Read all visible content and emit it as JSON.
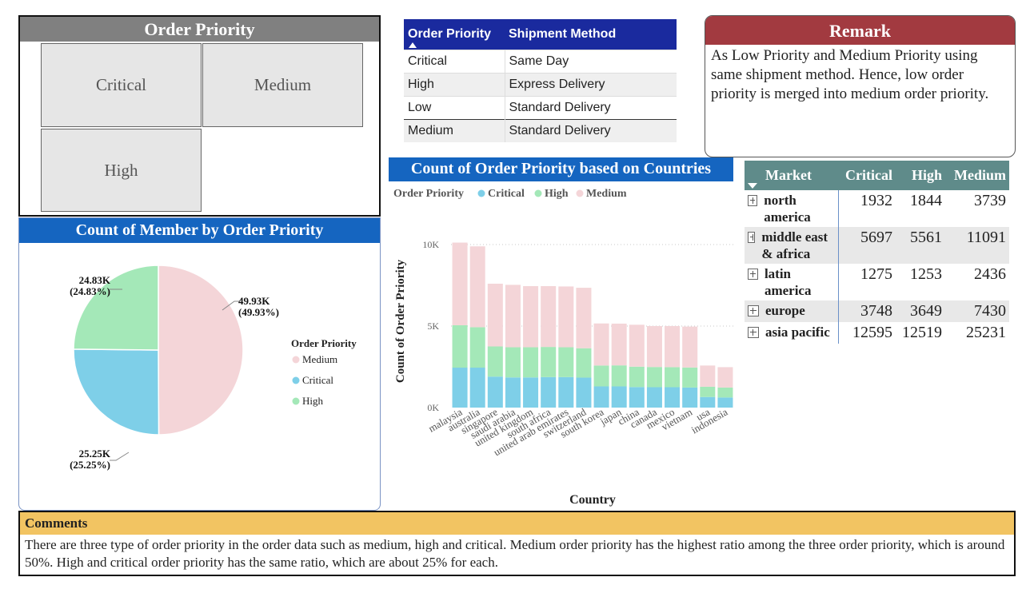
{
  "slicer": {
    "title": "Order Priority",
    "items": [
      "Critical",
      "Medium",
      "High"
    ]
  },
  "shipment_table": {
    "headers": [
      "Order Priority",
      "Shipment Method"
    ],
    "rows": [
      [
        "Critical",
        "Same Day"
      ],
      [
        "High",
        "Express Delivery"
      ],
      [
        "Low",
        "Standard Delivery"
      ],
      [
        "Medium",
        "Standard Delivery"
      ]
    ]
  },
  "remark": {
    "title": "Remark",
    "text": "As Low Priority and Medium Priority using same shipment method. Hence, low order priority is merged into medium order priority."
  },
  "pie": {
    "title": "Count of Member by Order Priority",
    "legend_title": "Order Priority",
    "labels": {
      "medium": [
        "49.93K",
        "(49.93%)"
      ],
      "high": [
        "24.83K",
        "(24.83%)"
      ],
      "critical": [
        "25.25K",
        "(25.25%)"
      ]
    }
  },
  "bar": {
    "title": "Count of Order Priority based on Countries",
    "legend_title": "Order Priority"
  },
  "matrix": {
    "headers": [
      "Market",
      "Critical",
      "High",
      "Medium"
    ],
    "rows": [
      {
        "market": "north america",
        "critical": "1932",
        "high": "1844",
        "medium": "3739"
      },
      {
        "market": "middle east & africa",
        "critical": "5697",
        "high": "5561",
        "medium": "11091"
      },
      {
        "market": "latin america",
        "critical": "1275",
        "high": "1253",
        "medium": "2436"
      },
      {
        "market": "europe",
        "critical": "3748",
        "high": "3649",
        "medium": "7430"
      },
      {
        "market": "asia pacific",
        "critical": "12595",
        "high": "12519",
        "medium": "25231"
      }
    ]
  },
  "comments": {
    "title": "Comments",
    "text": "There are three type of order priority in the order data such as medium, high and critical. Medium order priority has the highest ratio among the three order priority, which is around 50%. High and critical order priority has the same ratio, which are about 25% for each."
  },
  "colors": {
    "medium": "#f4d5d8",
    "critical": "#7ecfe8",
    "high": "#a4e8b8"
  },
  "chart_data": [
    {
      "type": "pie",
      "title": "Count of Member by Order Priority",
      "legend_title": "Order Priority",
      "legend_placement": "right",
      "slices": [
        {
          "name": "Medium",
          "value": 49930,
          "percent": 49.93
        },
        {
          "name": "Critical",
          "value": 25250,
          "percent": 25.25
        },
        {
          "name": "High",
          "value": 24830,
          "percent": 24.83
        }
      ]
    },
    {
      "type": "bar",
      "stacked": true,
      "title": "Count of Order Priority based on Countries",
      "xlabel": "Country",
      "ylabel": "Count of Order Priority",
      "legend_title": "Order Priority",
      "legend_placement": "top-left",
      "ylim": [
        0,
        10000
      ],
      "yticks": [
        {
          "value": 0,
          "label": "0K"
        },
        {
          "value": 5000,
          "label": "5K"
        },
        {
          "value": 10000,
          "label": "10K"
        }
      ],
      "grid": true,
      "categories": [
        "malaysia",
        "australia",
        "singapore",
        "saudi arabia",
        "united kingdom",
        "south africa",
        "united arab emirates",
        "switzerland",
        "south korea",
        "japan",
        "china",
        "canada",
        "mexico",
        "vietnam",
        "usa",
        "indonesia"
      ],
      "series": [
        {
          "name": "Critical",
          "values": [
            2450,
            2450,
            1900,
            1850,
            1850,
            1870,
            1870,
            1840,
            1300,
            1300,
            1260,
            1250,
            1250,
            1230,
            650,
            620
          ]
        },
        {
          "name": "High",
          "values": [
            2600,
            2480,
            1850,
            1850,
            1850,
            1850,
            1830,
            1800,
            1280,
            1290,
            1250,
            1240,
            1230,
            1230,
            630,
            610
          ]
        },
        {
          "name": "Medium",
          "values": [
            5070,
            4960,
            3850,
            3830,
            3750,
            3730,
            3730,
            3710,
            2580,
            2560,
            2570,
            2510,
            2520,
            2510,
            1300,
            1250
          ]
        }
      ]
    }
  ]
}
